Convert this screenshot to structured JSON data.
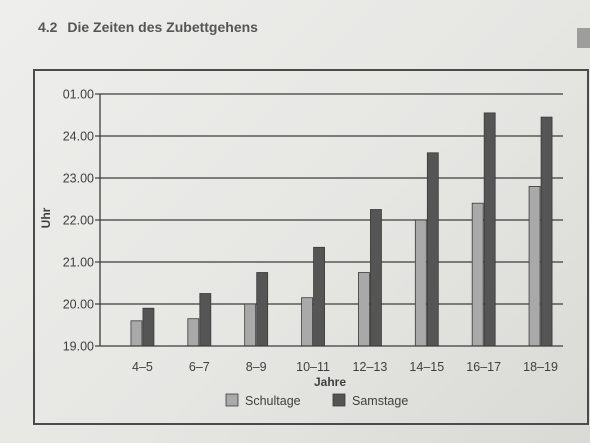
{
  "heading": {
    "number": "4.2",
    "title": "Die Zeiten des Zubettgehens"
  },
  "chart_data": {
    "type": "bar",
    "title": "",
    "xlabel": "Jahre",
    "ylabel": "Uhr",
    "categories": [
      "4–5",
      "6–7",
      "8–9",
      "10–11",
      "12–13",
      "14–15",
      "16–17",
      "18–19"
    ],
    "y_tick_labels": [
      "19.00",
      "20.00",
      "21.00",
      "22.00",
      "23.00",
      "24.00",
      "01.00"
    ],
    "ylim": [
      19,
      25
    ],
    "y_unit": "hours (24.00 = midnight, 01.00 = 25)",
    "grid": "horizontal",
    "legend_position": "bottom",
    "series": [
      {
        "name": "Schultage",
        "color": "#a9a9a9",
        "values": [
          19.6,
          19.65,
          20.0,
          20.15,
          20.75,
          22.0,
          22.4,
          22.8
        ]
      },
      {
        "name": "Samstage",
        "color": "#555555",
        "values": [
          19.9,
          20.25,
          20.75,
          21.35,
          22.25,
          23.6,
          24.55,
          24.45
        ]
      }
    ]
  }
}
